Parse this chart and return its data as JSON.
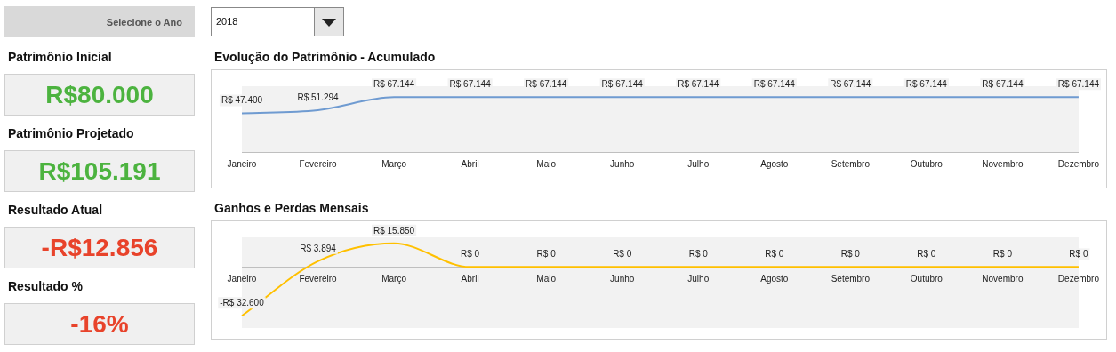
{
  "chart_data": [
    {
      "type": "other",
      "annotations": [
        "Selecione o Ano",
        "2018",
        "Patrimônio Inicial",
        "R$80.000",
        "Patrimônio Projetado",
        "R$105.191",
        "Resultado Atual",
        "-R$12.856",
        "Resultado %",
        "-16%"
      ],
      "colors": [
        "#4cb33f",
        "#4cb33f",
        "#e8432b",
        "#e8432b"
      ]
    },
    {
      "type": "line",
      "title": "Evolução do Patrimônio - Acumulado",
      "categories": [
        "Janeiro",
        "Fevereiro",
        "Março",
        "Abril",
        "Maio",
        "Junho",
        "Julho",
        "Agosto",
        "Setembro",
        "Outubro",
        "Novembro",
        "Dezembro"
      ],
      "series": [
        {
          "color": "#6f9bd1",
          "values": [
            47400,
            51294,
            67144,
            67144,
            67144,
            67144,
            67144,
            67144,
            67144,
            67144,
            67144,
            67144
          ],
          "value_labels": [
            "R$ 47.400",
            "R$ 51.294",
            "R$ 67.144",
            "R$ 67.144",
            "R$ 67.144",
            "R$ 67.144",
            "R$ 67.144",
            "R$ 67.144",
            "R$ 67.144",
            "R$ 67.144",
            "R$ 67.144",
            "R$ 67.144"
          ]
        }
      ]
    },
    {
      "type": "line",
      "title": "Ganhos e Perdas Mensais",
      "categories": [
        "Janeiro",
        "Fevereiro",
        "Março",
        "Abril",
        "Maio",
        "Junho",
        "Julho",
        "Agosto",
        "Setembro",
        "Outubro",
        "Novembro",
        "Dezembro"
      ],
      "series": [
        {
          "color": "#ffc000",
          "values": [
            -32600,
            3894,
            15850,
            0,
            0,
            0,
            0,
            0,
            0,
            0,
            0,
            0
          ],
          "value_labels": [
            "-R$ 32.600",
            "R$ 3.894",
            "R$ 15.850",
            "R$ 0",
            "R$ 0",
            "R$ 0",
            "R$ 0",
            "R$ 0",
            "R$ 0",
            "R$ 0",
            "R$ 0",
            "R$ 0"
          ]
        }
      ]
    }
  ]
}
